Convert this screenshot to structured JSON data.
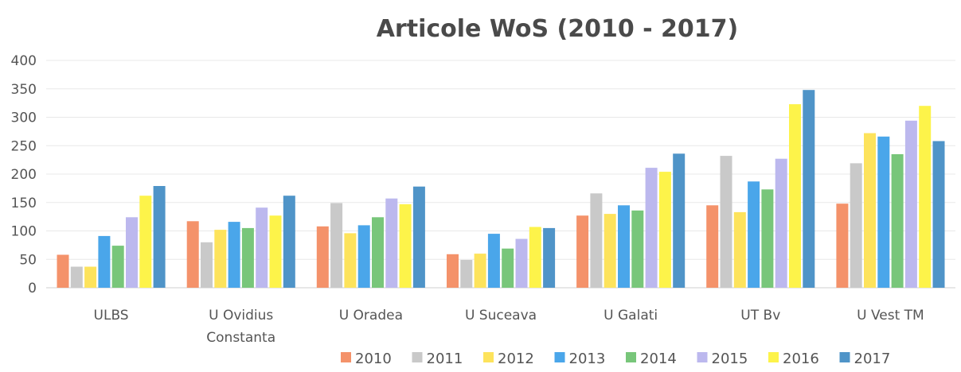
{
  "chart_data": {
    "type": "bar",
    "title": "Articole WoS (2010 - 2017)",
    "xlabel": "",
    "ylabel": "",
    "ylim": [
      0,
      400
    ],
    "yticks": [
      0,
      50,
      100,
      150,
      200,
      250,
      300,
      350,
      400
    ],
    "grid": true,
    "legend_position": "bottom",
    "categories": [
      [
        "ULBS"
      ],
      [
        "U Ovidius",
        "Constanta"
      ],
      [
        "U Oradea"
      ],
      [
        "U Suceava"
      ],
      [
        "U Galati"
      ],
      [
        "UT Bv"
      ],
      [
        "U Vest TM"
      ]
    ],
    "series": [
      {
        "name": "2010",
        "color": "#f4926a",
        "values": [
          58,
          117,
          108,
          59,
          127,
          145,
          148
        ]
      },
      {
        "name": "2011",
        "color": "#c9c9c9",
        "values": [
          37,
          80,
          149,
          49,
          166,
          232,
          219
        ]
      },
      {
        "name": "2012",
        "color": "#fde35c",
        "values": [
          37,
          102,
          96,
          60,
          130,
          133,
          272
        ]
      },
      {
        "name": "2013",
        "color": "#4aa6ea",
        "values": [
          91,
          116,
          110,
          95,
          145,
          187,
          266
        ]
      },
      {
        "name": "2014",
        "color": "#78c67a",
        "values": [
          74,
          105,
          124,
          69,
          136,
          173,
          235
        ]
      },
      {
        "name": "2015",
        "color": "#bcb8ee",
        "values": [
          124,
          141,
          157,
          86,
          211,
          227,
          294
        ]
      },
      {
        "name": "2016",
        "color": "#fdf34a",
        "values": [
          162,
          127,
          147,
          107,
          204,
          323,
          320
        ]
      },
      {
        "name": "2017",
        "color": "#4f94c8",
        "values": [
          179,
          162,
          178,
          105,
          236,
          348,
          258
        ]
      }
    ]
  }
}
